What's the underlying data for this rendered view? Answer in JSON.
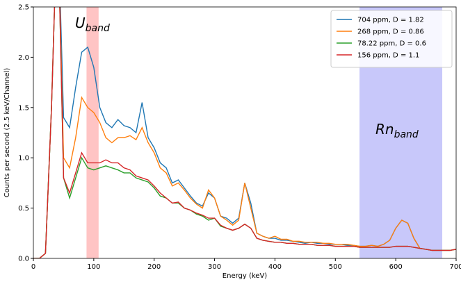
{
  "chart_data": {
    "type": "line",
    "xlabel": "Energy (keV)",
    "ylabel": "Counts per second (2.5 keV/Channel)",
    "xlim": [
      0,
      700
    ],
    "ylim": [
      0,
      2.5
    ],
    "xticks": [
      0,
      100,
      200,
      300,
      400,
      500,
      600,
      700
    ],
    "yticks": [
      {
        "value": 0,
        "label": "0.0"
      },
      0.5,
      {
        "value": 1,
        "label": "1.0"
      },
      1.5,
      {
        "value": 2,
        "label": "2.0"
      },
      2.5
    ],
    "legend": "upper right",
    "bands": [
      {
        "xlim": [
          88,
          108
        ],
        "color": "#ffc4c4"
      },
      {
        "xlim": [
          540,
          677
        ],
        "color": "#c8c8fa"
      }
    ],
    "annotations": [
      {
        "text": "U",
        "subscript": "band",
        "color": "#e8141c"
      },
      {
        "text": "Rn",
        "subscript": "band",
        "color": "#1c1ce0"
      }
    ],
    "x": [
      0,
      10,
      20,
      30,
      40,
      50,
      60,
      70,
      80,
      90,
      100,
      110,
      120,
      130,
      140,
      150,
      160,
      170,
      180,
      190,
      200,
      210,
      220,
      230,
      240,
      250,
      260,
      270,
      280,
      290,
      300,
      310,
      320,
      330,
      340,
      350,
      360,
      370,
      380,
      390,
      400,
      410,
      420,
      430,
      440,
      450,
      460,
      470,
      480,
      490,
      500,
      510,
      520,
      530,
      540,
      550,
      560,
      570,
      580,
      590,
      600,
      610,
      620,
      630,
      640,
      650,
      660,
      670,
      680,
      690,
      700
    ],
    "series": [
      {
        "name": "704 ppm, D = 1.82",
        "color": "#1f77b4",
        "values": [
          0,
          0,
          0.05,
          1.5,
          3.5,
          1.4,
          1.3,
          1.7,
          2.05,
          2.1,
          1.9,
          1.5,
          1.35,
          1.3,
          1.38,
          1.32,
          1.3,
          1.25,
          1.55,
          1.2,
          1.1,
          0.95,
          0.9,
          0.75,
          0.78,
          0.7,
          0.62,
          0.55,
          0.52,
          0.65,
          0.6,
          0.42,
          0.4,
          0.35,
          0.4,
          0.75,
          0.55,
          0.25,
          0.22,
          0.2,
          0.2,
          0.18,
          0.18,
          0.17,
          0.16,
          0.15,
          0.16,
          0.15,
          0.15,
          0.14,
          0.14,
          0.14,
          0.13,
          0.13,
          0.12,
          0.12,
          0.13,
          0.12,
          0.14,
          0.18,
          0.3,
          0.38,
          0.35,
          0.2,
          0.1,
          0.09,
          0.08,
          0.08,
          0.08,
          0.08,
          0.09
        ]
      },
      {
        "name": "268 ppm, D = 0.86",
        "color": "#ff7f0e",
        "values": [
          0,
          0,
          0.05,
          1.5,
          3.5,
          1.0,
          0.9,
          1.2,
          1.6,
          1.5,
          1.45,
          1.35,
          1.2,
          1.15,
          1.2,
          1.2,
          1.22,
          1.18,
          1.3,
          1.15,
          1.05,
          0.9,
          0.85,
          0.72,
          0.75,
          0.68,
          0.6,
          0.54,
          0.5,
          0.68,
          0.6,
          0.42,
          0.38,
          0.33,
          0.38,
          0.75,
          0.5,
          0.25,
          0.22,
          0.2,
          0.22,
          0.19,
          0.19,
          0.17,
          0.17,
          0.16,
          0.16,
          0.16,
          0.15,
          0.15,
          0.14,
          0.14,
          0.14,
          0.13,
          0.12,
          0.12,
          0.13,
          0.12,
          0.14,
          0.18,
          0.3,
          0.38,
          0.35,
          0.2,
          0.1,
          0.09,
          0.08,
          0.08,
          0.08,
          0.08,
          0.09
        ]
      },
      {
        "name": "78.22 ppm, D = 0.6",
        "color": "#2ca02c",
        "values": [
          0,
          0,
          0.05,
          1.5,
          3.5,
          0.8,
          0.6,
          0.8,
          1.0,
          0.9,
          0.88,
          0.9,
          0.92,
          0.9,
          0.88,
          0.85,
          0.85,
          0.8,
          0.78,
          0.76,
          0.7,
          0.62,
          0.6,
          0.55,
          0.55,
          0.5,
          0.48,
          0.44,
          0.42,
          0.38,
          0.4,
          0.32,
          0.3,
          0.28,
          0.3,
          0.34,
          0.3,
          0.2,
          0.18,
          0.17,
          0.16,
          0.16,
          0.15,
          0.15,
          0.14,
          0.14,
          0.14,
          0.13,
          0.13,
          0.13,
          0.12,
          0.12,
          0.12,
          0.12,
          0.11,
          0.11,
          0.11,
          0.11,
          0.11,
          0.11,
          0.12,
          0.12,
          0.12,
          0.11,
          0.1,
          0.09,
          0.08,
          0.08,
          0.08,
          0.08,
          0.09
        ]
      },
      {
        "name": "156 ppm, D = 1.1",
        "color": "#d62728",
        "values": [
          0,
          0,
          0.05,
          1.5,
          3.5,
          0.8,
          0.65,
          0.85,
          1.05,
          0.95,
          0.95,
          0.95,
          0.98,
          0.95,
          0.95,
          0.9,
          0.88,
          0.82,
          0.8,
          0.78,
          0.72,
          0.65,
          0.6,
          0.55,
          0.56,
          0.5,
          0.48,
          0.45,
          0.43,
          0.4,
          0.4,
          0.33,
          0.3,
          0.28,
          0.3,
          0.34,
          0.3,
          0.2,
          0.18,
          0.17,
          0.16,
          0.16,
          0.15,
          0.15,
          0.14,
          0.14,
          0.14,
          0.13,
          0.13,
          0.13,
          0.12,
          0.12,
          0.12,
          0.12,
          0.11,
          0.11,
          0.11,
          0.11,
          0.11,
          0.11,
          0.12,
          0.12,
          0.12,
          0.11,
          0.1,
          0.09,
          0.08,
          0.08,
          0.08,
          0.08,
          0.09
        ]
      }
    ]
  }
}
